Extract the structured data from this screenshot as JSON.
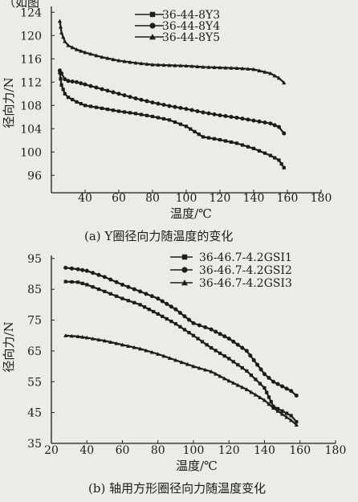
{
  "top_fragment": "（如图",
  "chart_data": [
    {
      "type": "line",
      "title": "(a)  Y圈径向力随温度的变化",
      "xlabel": "温度/℃",
      "ylabel": "径向力/N",
      "xlim": [
        20,
        180
      ],
      "ylim": [
        93,
        125
      ],
      "xticks": [
        40,
        60,
        80,
        100,
        120,
        140,
        160,
        180
      ],
      "yticks": [
        96,
        100,
        104,
        108,
        112,
        116,
        120,
        124
      ],
      "grid": false,
      "legend": "top-center",
      "series": [
        {
          "name": "36-44-8Y3",
          "marker": "square",
          "x": [
            25,
            26,
            28,
            30,
            35,
            40,
            50,
            60,
            70,
            80,
            90,
            100,
            110,
            120,
            130,
            140,
            150,
            155,
            158
          ],
          "y": [
            113.6,
            111.5,
            110.0,
            109.4,
            108.6,
            108.0,
            107.5,
            107.0,
            106.6,
            106.1,
            105.5,
            104.4,
            102.6,
            102.1,
            101.5,
            100.6,
            99.4,
            98.6,
            97.3
          ]
        },
        {
          "name": "36-44-8Y4",
          "marker": "circle",
          "x": [
            25,
            26,
            28,
            30,
            35,
            40,
            50,
            60,
            70,
            80,
            90,
            100,
            110,
            120,
            130,
            140,
            150,
            155,
            158
          ],
          "y": [
            114.0,
            113.5,
            112.5,
            112.2,
            112.0,
            111.6,
            110.8,
            110.0,
            109.2,
            108.5,
            107.9,
            107.4,
            106.8,
            106.3,
            105.9,
            105.4,
            104.9,
            104.3,
            103.2
          ]
        },
        {
          "name": "36-44-8Y5",
          "marker": "triangle",
          "x": [
            25,
            26,
            28,
            30,
            35,
            40,
            50,
            60,
            70,
            80,
            90,
            100,
            110,
            120,
            130,
            140,
            150,
            155,
            158
          ],
          "y": [
            122.5,
            120.5,
            119.0,
            118.3,
            117.6,
            117.1,
            116.3,
            115.7,
            115.3,
            115.0,
            114.9,
            114.8,
            114.6,
            114.5,
            114.4,
            114.2,
            113.5,
            112.7,
            111.9
          ]
        }
      ]
    },
    {
      "type": "line",
      "title": "(b)  轴用方形圈径向力随温度变化",
      "xlabel": "温度/℃",
      "ylabel": "径向力/N",
      "xlim": [
        20,
        180
      ],
      "ylim": [
        35,
        96
      ],
      "xticks": [
        20,
        40,
        60,
        80,
        100,
        120,
        140,
        160,
        180
      ],
      "yticks": [
        35,
        45,
        55,
        65,
        75,
        85,
        95
      ],
      "grid": false,
      "legend": "top-right",
      "series": [
        {
          "name": "36-46.7-4.2GSI1",
          "marker": "square",
          "x": [
            28,
            35,
            40,
            50,
            60,
            70,
            80,
            90,
            100,
            110,
            120,
            130,
            140,
            145,
            150,
            155,
            158
          ],
          "y": [
            87.5,
            87.3,
            86.5,
            84.3,
            82.0,
            80.0,
            77.0,
            73.8,
            70.0,
            66.0,
            62.5,
            58.5,
            53.0,
            47.0,
            45.5,
            44.0,
            42.0
          ]
        },
        {
          "name": "36-46.7-4.2GSI2",
          "marker": "circle",
          "x": [
            28,
            35,
            40,
            50,
            60,
            70,
            80,
            90,
            100,
            110,
            120,
            130,
            140,
            145,
            150,
            155,
            158
          ],
          "y": [
            92.0,
            91.5,
            91.0,
            89.0,
            86.5,
            84.3,
            82.0,
            78.5,
            74.0,
            72.0,
            69.0,
            65.0,
            57.5,
            55.0,
            53.5,
            52.0,
            50.5
          ]
        },
        {
          "name": "36-46.7-4.2GSI3",
          "marker": "triangle",
          "x": [
            28,
            35,
            40,
            50,
            60,
            70,
            80,
            90,
            100,
            110,
            120,
            130,
            140,
            145,
            150,
            155,
            158
          ],
          "y": [
            70.0,
            69.7,
            69.3,
            68.3,
            67.0,
            65.7,
            64.0,
            62.0,
            60.0,
            58.3,
            55.3,
            52.5,
            49.0,
            46.5,
            44.5,
            42.5,
            41.0
          ]
        }
      ]
    }
  ]
}
